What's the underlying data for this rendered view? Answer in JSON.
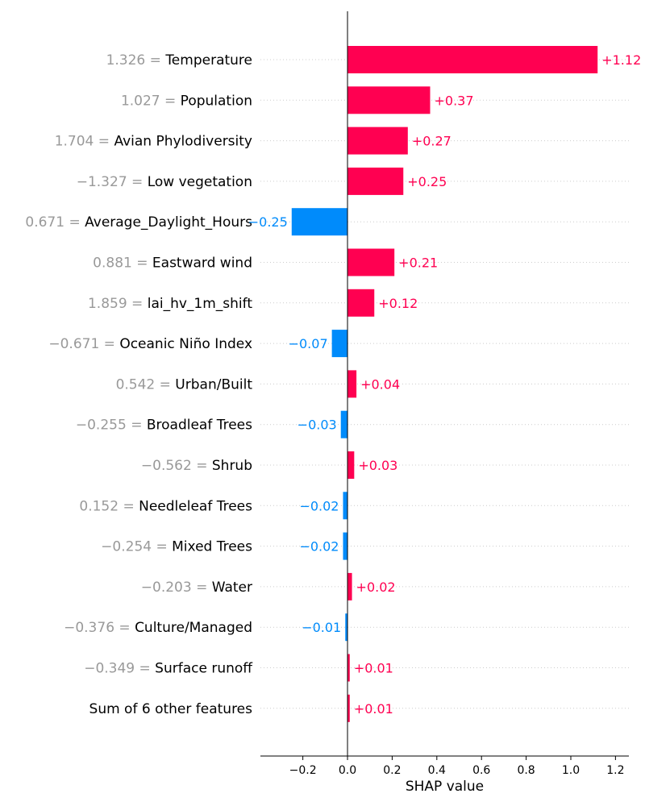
{
  "colors": {
    "positive": "#ff0051",
    "negative": "#008bfb",
    "feature_value_text": "#999999",
    "gridline": "#cccccc",
    "axis": "#000000"
  },
  "chart_data": {
    "type": "bar",
    "orientation": "horizontal",
    "xlabel": "SHAP value",
    "xlim": [
      -0.39,
      1.26
    ],
    "xticks": [
      -0.2,
      0.0,
      0.2,
      0.4,
      0.6,
      0.8,
      1.0,
      1.2
    ],
    "xtick_labels": [
      "−0.2",
      "0.0",
      "0.2",
      "0.4",
      "0.6",
      "0.8",
      "1.0",
      "1.2"
    ],
    "grid": "dotted horizontal row guides",
    "features": [
      {
        "value": "1.326",
        "name": "Temperature",
        "shap": 1.12,
        "label": "+1.12"
      },
      {
        "value": "1.027",
        "name": "Population",
        "shap": 0.37,
        "label": "+0.37"
      },
      {
        "value": "1.704",
        "name": "Avian Phylodiversity",
        "shap": 0.27,
        "label": "+0.27"
      },
      {
        "value": "−1.327",
        "name": "Low vegetation",
        "shap": 0.25,
        "label": "+0.25"
      },
      {
        "value": "0.671",
        "name": "Average_Daylight_Hours",
        "shap": -0.25,
        "label": "−0.25"
      },
      {
        "value": "0.881",
        "name": "Eastward wind",
        "shap": 0.21,
        "label": "+0.21"
      },
      {
        "value": "1.859",
        "name": "lai_hv_1m_shift",
        "shap": 0.12,
        "label": "+0.12"
      },
      {
        "value": "−0.671",
        "name": "Oceanic Niño Index",
        "shap": -0.07,
        "label": "−0.07"
      },
      {
        "value": "0.542",
        "name": "Urban/Built",
        "shap": 0.04,
        "label": "+0.04"
      },
      {
        "value": "−0.255",
        "name": "Broadleaf Trees",
        "shap": -0.03,
        "label": "−0.03"
      },
      {
        "value": "−0.562",
        "name": "Shrub",
        "shap": 0.03,
        "label": "+0.03"
      },
      {
        "value": "0.152",
        "name": "Needleleaf Trees",
        "shap": -0.02,
        "label": "−0.02"
      },
      {
        "value": "−0.254",
        "name": "Mixed Trees",
        "shap": -0.02,
        "label": "−0.02"
      },
      {
        "value": "−0.203",
        "name": "Water",
        "shap": 0.02,
        "label": "+0.02"
      },
      {
        "value": "−0.376",
        "name": "Culture/Managed",
        "shap": -0.01,
        "label": "−0.01"
      },
      {
        "value": "−0.349",
        "name": "Surface runoff",
        "shap": 0.01,
        "label": "+0.01"
      },
      {
        "value": "",
        "name": "Sum of 6 other features",
        "shap": 0.01,
        "label": "+0.01"
      }
    ]
  }
}
